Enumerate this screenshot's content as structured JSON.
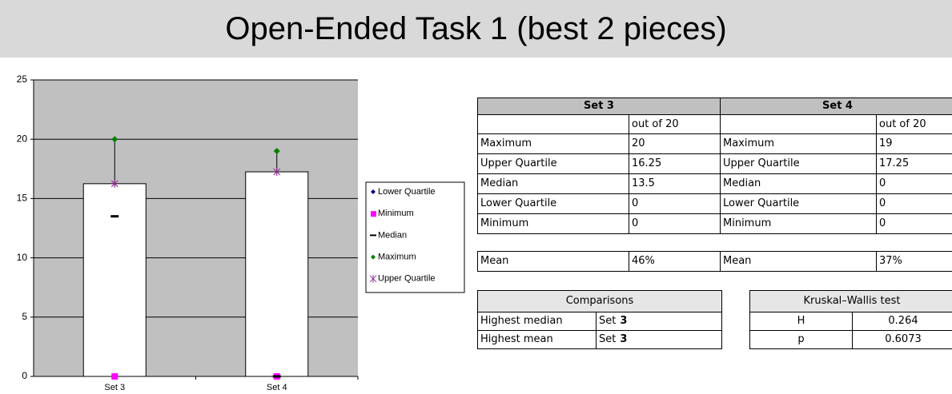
{
  "title": "Open-Ended Task 1 (best 2 pieces)",
  "chart_data": {
    "type": "stock",
    "categories": [
      "Set 3",
      "Set 4"
    ],
    "series": [
      {
        "name": "Lower Quartile",
        "color": "#000080",
        "values": [
          0,
          0
        ]
      },
      {
        "name": "Minimum",
        "color": "#ff00ff",
        "values": [
          0,
          0
        ]
      },
      {
        "name": "Median",
        "color": "#000000",
        "values": [
          13.5,
          0
        ]
      },
      {
        "name": "Maximum",
        "color": "#008000",
        "values": [
          20,
          19
        ]
      },
      {
        "name": "Upper Quartile",
        "color": "#993399",
        "values": [
          16.25,
          17.25
        ]
      }
    ],
    "ylim": [
      0,
      25
    ],
    "yticks": [
      0,
      5,
      10,
      15,
      20,
      25
    ],
    "grid": true
  },
  "stats": {
    "headers": [
      "Set 3",
      "Set 4"
    ],
    "units": [
      "out of 20",
      "out of 20"
    ],
    "rows": [
      [
        "Maximum",
        "20",
        "Maximum",
        "19"
      ],
      [
        "Upper Quartile",
        "16.25",
        "Upper Quartile",
        "17.25"
      ],
      [
        "Median",
        "13.5",
        "Median",
        "0"
      ],
      [
        "Lower Quartile",
        "0",
        "Lower Quartile",
        "0"
      ],
      [
        "Minimum",
        "0",
        "Minimum",
        "0"
      ]
    ],
    "mean": [
      "Mean",
      "46%",
      "Mean",
      "37%"
    ]
  },
  "comparisons": {
    "title": "Comparisons",
    "rows": [
      [
        "Highest median",
        "Set",
        "3"
      ],
      [
        "Highest mean",
        "Set",
        "3"
      ]
    ]
  },
  "kruskal": {
    "title": "Kruskal–Wallis test",
    "rows": [
      [
        "H",
        "0.264"
      ],
      [
        "p",
        "0.6073"
      ]
    ]
  }
}
